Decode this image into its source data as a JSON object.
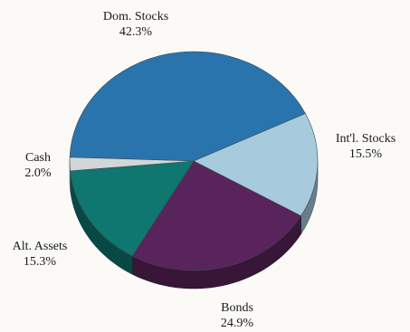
{
  "chart_data": {
    "type": "pie",
    "title": "",
    "slices": [
      {
        "label": "Dom. Stocks",
        "value": 42.3,
        "value_label": "42.3%",
        "color": "#2a74ad"
      },
      {
        "label": "Int'l. Stocks",
        "value": 15.5,
        "value_label": "15.5%",
        "color": "#a7cbdd"
      },
      {
        "label": "Bonds",
        "value": 24.9,
        "value_label": "24.9%",
        "color": "#59235b"
      },
      {
        "label": "Alt. Assets",
        "value": 15.3,
        "value_label": "15.3%",
        "color": "#0f7670"
      },
      {
        "label": "Cash",
        "value": 2.0,
        "value_label": "2.0%",
        "color": "#d2d6d6"
      }
    ],
    "style": "3d-tilted",
    "legend": "none"
  }
}
